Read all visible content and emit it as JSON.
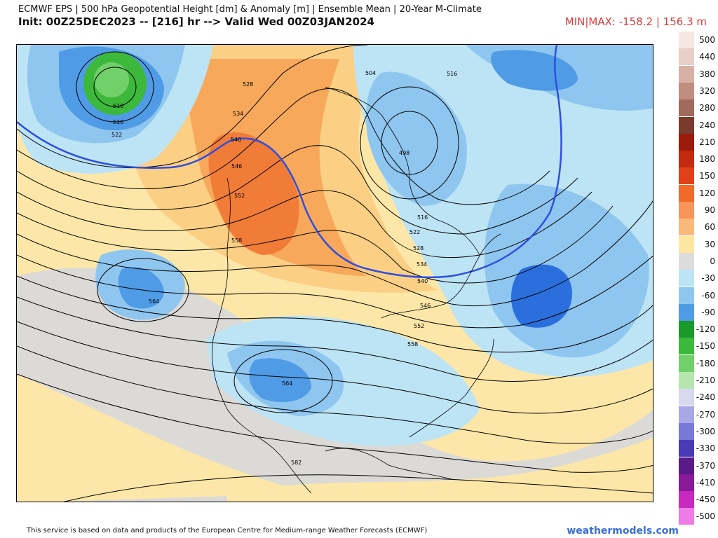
{
  "header": {
    "title_line1": "ECMWF EPS | 500 hPa Geopotential Height [dm] & Anomaly [m] | Ensemble Mean | 20-Year M-Climate",
    "title_line2": "Init: 00Z25DEC2023 -- [216] hr --> Valid Wed 00Z03JAN2024",
    "minmax": "MIN|MAX: -158.2 | 156.3 m"
  },
  "map": {
    "contour_labels": [
      "510",
      "516",
      "522",
      "528",
      "534",
      "540",
      "546",
      "552",
      "558",
      "504",
      "498",
      "516",
      "522",
      "528",
      "534",
      "540",
      "546",
      "552",
      "558",
      "564",
      "564",
      "582",
      "516"
    ],
    "highlight_contour": "540",
    "colors": {
      "background": "#fde7a8",
      "neutral": "#d9d9d9",
      "warm1": "#fbcf84",
      "warm2": "#f7a85a",
      "warm3": "#f07c37",
      "cold1": "#bde4f5",
      "cold2": "#8fc6ef",
      "cold3": "#4f9be6",
      "cold4": "#2a6fdc",
      "green": "#3cb83a",
      "highlight": "#2f4fe0"
    }
  },
  "legend": [
    {
      "label": "500",
      "color": "#f5e6e2"
    },
    {
      "label": "440",
      "color": "#e8cfc8"
    },
    {
      "label": "380",
      "color": "#d8b0a5"
    },
    {
      "label": "320",
      "color": "#c08d80"
    },
    {
      "label": "280",
      "color": "#a06a5c"
    },
    {
      "label": "240",
      "color": "#7a3a2c"
    },
    {
      "label": "210",
      "color": "#9a1a0c"
    },
    {
      "label": "180",
      "color": "#c42a10"
    },
    {
      "label": "150",
      "color": "#e2401a"
    },
    {
      "label": "120",
      "color": "#f26a2a"
    },
    {
      "label": "90",
      "color": "#f7955a"
    },
    {
      "label": "60",
      "color": "#fab97a"
    },
    {
      "label": "30",
      "color": "#fde7a0"
    },
    {
      "label": "0",
      "color": "#dcdcdc"
    },
    {
      "label": "-30",
      "color": "#bde4f5"
    },
    {
      "label": "-60",
      "color": "#8fc6ef"
    },
    {
      "label": "-90",
      "color": "#4f9be6"
    },
    {
      "label": "-120",
      "color": "#1a9a2a"
    },
    {
      "label": "-150",
      "color": "#3cb83a"
    },
    {
      "label": "-180",
      "color": "#72d06a"
    },
    {
      "label": "-210",
      "color": "#b6e6ae"
    },
    {
      "label": "-240",
      "color": "#d8d8f0"
    },
    {
      "label": "-270",
      "color": "#a8a8e6"
    },
    {
      "label": "-300",
      "color": "#7878d8"
    },
    {
      "label": "-330",
      "color": "#4a3ab8"
    },
    {
      "label": "-370",
      "color": "#5a1a8a"
    },
    {
      "label": "-410",
      "color": "#8a1a9a"
    },
    {
      "label": "-450",
      "color": "#c82ac0"
    },
    {
      "label": "-500",
      "color": "#f07ae8"
    }
  ],
  "footer": {
    "credit": "This service is based on data and products of the European Centre for Medium-range Weather Forecasts (ECMWF)",
    "brand": "weathermodels.com"
  }
}
